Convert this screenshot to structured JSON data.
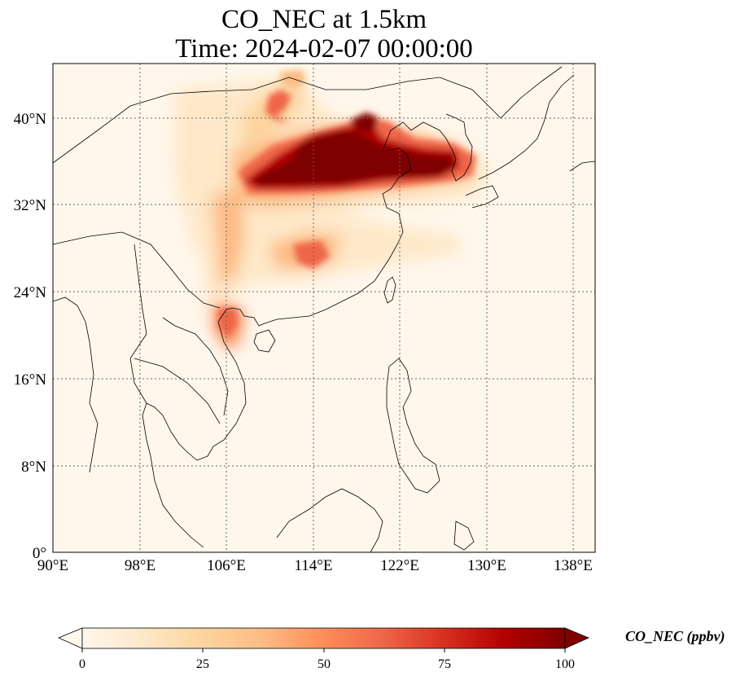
{
  "title": {
    "line1": "CO_NEC at 1.5km",
    "line2": "Time: 2024-02-07 00:00:00"
  },
  "map": {
    "projection": "PlateCarree",
    "lon_range": [
      90,
      140
    ],
    "lat_range": [
      0,
      45
    ],
    "gridlines": "dotted",
    "lon_ticks": [
      "90°E",
      "98°E",
      "106°E",
      "114°E",
      "122°E",
      "130°E",
      "138°E"
    ],
    "lat_ticks": [
      "0°",
      "8°N",
      "16°N",
      "24°N",
      "32°N",
      "40°N"
    ]
  },
  "colorbar": {
    "label": "CO_NEC (ppbv)",
    "ticks": [
      "0",
      "25",
      "50",
      "75",
      "100"
    ],
    "range": [
      0,
      100
    ],
    "extend": "both",
    "colormap": "OrRd",
    "colors": [
      "#fff7ec",
      "#fee8c8",
      "#fdd49e",
      "#fdbb84",
      "#fc8d59",
      "#ef6548",
      "#d7301f",
      "#b30000",
      "#7f0000"
    ]
  }
}
